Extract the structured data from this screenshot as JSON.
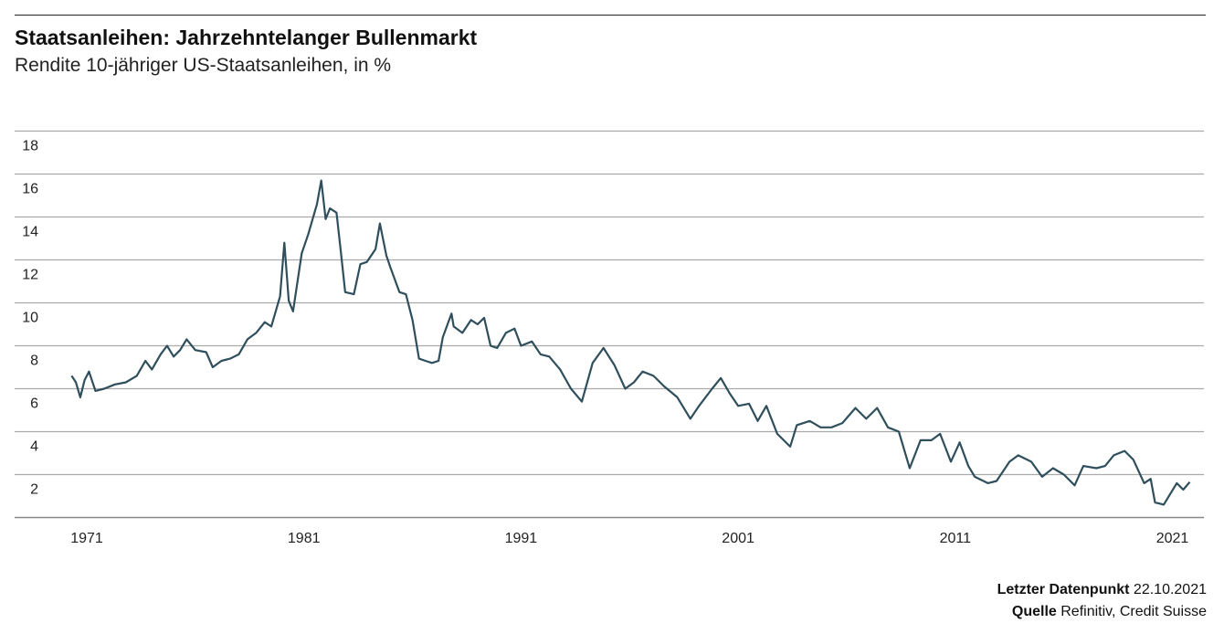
{
  "chart_data": {
    "type": "line",
    "title": "Staatsanleihen: Jahrzehntelanger Bullenmarkt",
    "subtitle": "Rendite 10-jähriger US-Staatsanleihen, in %",
    "xlabel": "",
    "ylabel": "",
    "ylim": [
      0,
      18
    ],
    "xlim": [
      1970,
      2022
    ],
    "yticks": [
      "2",
      "4",
      "6",
      "8",
      "10",
      "12",
      "14",
      "16",
      "18"
    ],
    "xticks": [
      "1971",
      "1981",
      "1991",
      "2001",
      "2011",
      "2021"
    ],
    "grid": true,
    "line_color": "#2f4f5c",
    "series": [
      {
        "name": "Rendite 10-jähriger US-Staatsanleihen",
        "x": [
          1970.3,
          1970.5,
          1970.7,
          1970.9,
          1971.1,
          1971.4,
          1971.8,
          1972.3,
          1972.8,
          1973.3,
          1973.7,
          1974.0,
          1974.4,
          1974.7,
          1975.0,
          1975.3,
          1975.6,
          1976.0,
          1976.5,
          1976.8,
          1977.2,
          1977.6,
          1978.0,
          1978.4,
          1978.8,
          1979.2,
          1979.5,
          1979.9,
          1980.1,
          1980.3,
          1980.5,
          1980.9,
          1981.2,
          1981.6,
          1981.8,
          1982.0,
          1982.2,
          1982.5,
          1982.7,
          1982.9,
          1983.3,
          1983.6,
          1983.9,
          1984.3,
          1984.5,
          1984.8,
          1985.0,
          1985.4,
          1985.7,
          1986.0,
          1986.3,
          1986.6,
          1986.9,
          1987.2,
          1987.4,
          1987.8,
          1987.9,
          1988.3,
          1988.7,
          1989.0,
          1989.3,
          1989.6,
          1989.9,
          1990.3,
          1990.7,
          1991.0,
          1991.5,
          1991.9,
          1992.3,
          1992.8,
          1993.3,
          1993.8,
          1994.3,
          1994.8,
          1995.3,
          1995.8,
          1996.2,
          1996.6,
          1997.1,
          1997.6,
          1998.2,
          1998.8,
          1999.2,
          1999.8,
          2000.2,
          2000.6,
          2001.0,
          2001.5,
          2001.9,
          2002.3,
          2002.8,
          2003.4,
          2003.7,
          2004.3,
          2004.8,
          2005.3,
          2005.8,
          2006.4,
          2006.9,
          2007.4,
          2007.9,
          2008.4,
          2008.9,
          2009.4,
          2009.9,
          2010.3,
          2010.8,
          2011.2,
          2011.6,
          2011.9,
          2012.5,
          2012.9,
          2013.5,
          2013.9,
          2014.5,
          2015.0,
          2015.5,
          2016.0,
          2016.5,
          2016.9,
          2017.5,
          2017.9,
          2018.3,
          2018.8,
          2019.2,
          2019.7,
          2020.0,
          2020.2,
          2020.6,
          2021.2,
          2021.5,
          2021.8
        ],
        "values": [
          6.6,
          6.3,
          5.6,
          6.4,
          6.8,
          5.9,
          6.0,
          6.2,
          6.3,
          6.6,
          7.3,
          6.9,
          7.6,
          8.0,
          7.5,
          7.8,
          8.3,
          7.8,
          7.7,
          7.0,
          7.3,
          7.4,
          7.6,
          8.3,
          8.6,
          9.1,
          8.9,
          10.3,
          12.8,
          10.1,
          9.6,
          12.3,
          13.2,
          14.6,
          15.7,
          13.9,
          14.4,
          14.2,
          12.4,
          10.5,
          10.4,
          11.8,
          11.9,
          12.5,
          13.7,
          12.2,
          11.6,
          10.5,
          10.4,
          9.2,
          7.4,
          7.3,
          7.2,
          7.3,
          8.4,
          9.5,
          8.9,
          8.6,
          9.2,
          9.0,
          9.3,
          8.0,
          7.9,
          8.6,
          8.8,
          8.0,
          8.2,
          7.6,
          7.5,
          6.9,
          6.0,
          5.4,
          7.2,
          7.9,
          7.1,
          6.0,
          6.3,
          6.8,
          6.6,
          6.1,
          5.6,
          4.6,
          5.2,
          6.0,
          6.5,
          5.8,
          5.2,
          5.3,
          4.5,
          5.2,
          3.9,
          3.3,
          4.3,
          4.5,
          4.2,
          4.2,
          4.4,
          5.1,
          4.6,
          5.1,
          4.2,
          4.0,
          2.3,
          3.6,
          3.6,
          3.9,
          2.6,
          3.5,
          2.4,
          1.9,
          1.6,
          1.7,
          2.6,
          2.9,
          2.6,
          1.9,
          2.3,
          2.0,
          1.5,
          2.4,
          2.3,
          2.4,
          2.9,
          3.1,
          2.7,
          1.6,
          1.8,
          0.7,
          0.6,
          1.6,
          1.3,
          1.65
        ]
      }
    ]
  },
  "footer": {
    "last_label": "Letzter Datenpunkt",
    "last_value": "22.10.2021",
    "source_label": "Quelle",
    "source_value": "Refinitiv, Credit Suisse"
  }
}
